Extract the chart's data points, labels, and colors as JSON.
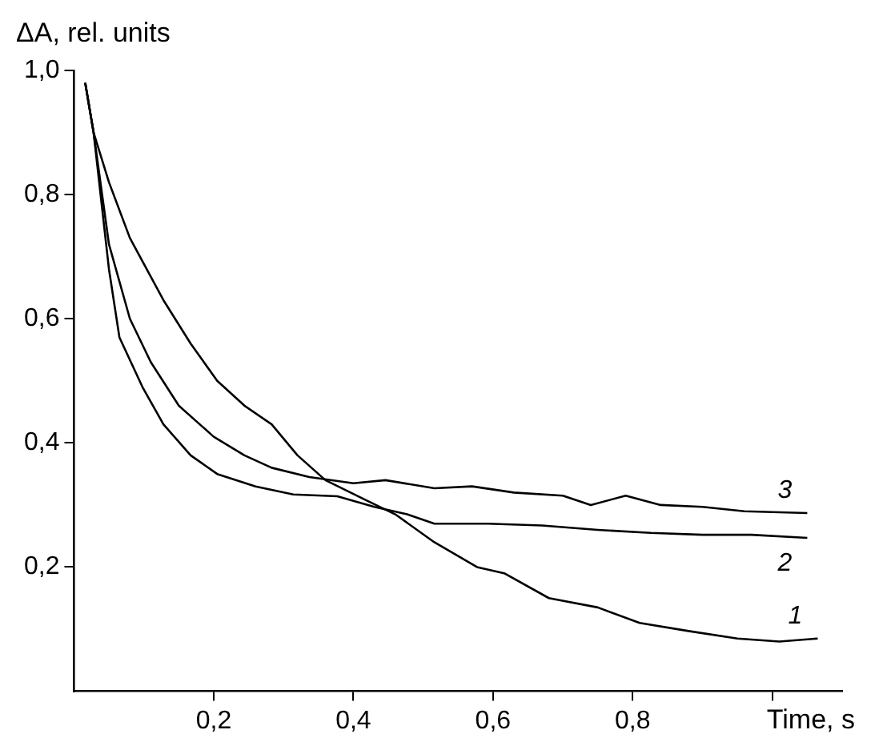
{
  "chart_data": {
    "type": "line",
    "xlabel": "Time, s",
    "ylabel": "ΔA, rel. units",
    "xlim": [
      0,
      1.1
    ],
    "ylim": [
      0,
      1
    ],
    "xticks": [
      {
        "value": 0.2,
        "label": "0,2"
      },
      {
        "value": 0.4,
        "label": "0,4"
      },
      {
        "value": 0.6,
        "label": "0,6"
      },
      {
        "value": 0.8,
        "label": "0,8"
      },
      {
        "value": 1,
        "label": null
      }
    ],
    "yticks": [
      {
        "value": 0.2,
        "label": "0,2"
      },
      {
        "value": 0.4,
        "label": "0,4"
      },
      {
        "value": 0.6,
        "label": "0,6"
      },
      {
        "value": 0.8,
        "label": "0,8"
      },
      {
        "value": 1,
        "label": "1,0"
      }
    ],
    "grid": false,
    "legend": false,
    "marker": "none",
    "line_style": "solid",
    "series": [
      {
        "name": "1",
        "color": "#000000",
        "x": [
          0.016,
          0.028,
          0.05,
          0.08,
          0.128,
          0.167,
          0.205,
          0.244,
          0.283,
          0.32,
          0.36,
          0.414,
          0.46,
          0.516,
          0.577,
          0.616,
          0.68,
          0.75,
          0.81,
          0.88,
          0.95,
          1.01,
          1.065
        ],
        "values": [
          0.98,
          0.9,
          0.82,
          0.73,
          0.63,
          0.56,
          0.5,
          0.46,
          0.43,
          0.38,
          0.34,
          0.31,
          0.285,
          0.24,
          0.2,
          0.19,
          0.15,
          0.135,
          0.11,
          0.097,
          0.085,
          0.08,
          0.085
        ]
      },
      {
        "name": "2",
        "color": "#000000",
        "x": [
          0.016,
          0.028,
          0.05,
          0.065,
          0.098,
          0.128,
          0.167,
          0.205,
          0.26,
          0.314,
          0.377,
          0.43,
          0.477,
          0.516,
          0.593,
          0.67,
          0.75,
          0.826,
          0.9,
          0.97,
          1.05
        ],
        "values": [
          0.98,
          0.9,
          0.68,
          0.57,
          0.49,
          0.43,
          0.38,
          0.35,
          0.33,
          0.317,
          0.314,
          0.297,
          0.285,
          0.27,
          0.27,
          0.267,
          0.26,
          0.255,
          0.252,
          0.252,
          0.247
        ]
      },
      {
        "name": "3",
        "color": "#000000",
        "x": [
          0.016,
          0.028,
          0.05,
          0.08,
          0.11,
          0.15,
          0.2,
          0.244,
          0.283,
          0.337,
          0.4,
          0.446,
          0.516,
          0.57,
          0.63,
          0.7,
          0.74,
          0.79,
          0.84,
          0.9,
          0.96,
          1.05
        ],
        "values": [
          0.98,
          0.9,
          0.72,
          0.6,
          0.53,
          0.46,
          0.41,
          0.38,
          0.36,
          0.345,
          0.335,
          0.34,
          0.327,
          0.33,
          0.32,
          0.315,
          0.3,
          0.315,
          0.3,
          0.297,
          0.29,
          0.287
        ]
      }
    ]
  }
}
